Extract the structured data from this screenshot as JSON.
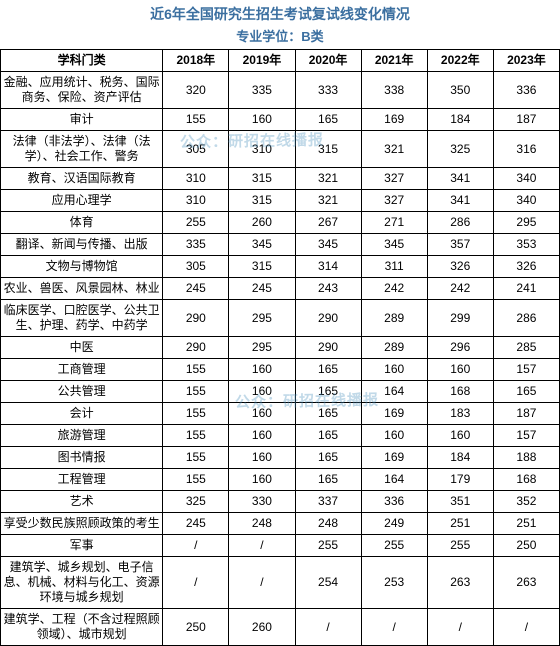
{
  "title_color": "#3b6fa0",
  "title": "近6年全国研究生招生考试复试线变化情况",
  "subtitle": "专业学位：B类",
  "columns": [
    "学科门类",
    "2018年",
    "2019年",
    "2020年",
    "2021年",
    "2022年",
    "2023年"
  ],
  "watermark1": "公众：研招在线播报",
  "watermark2": "公众：研招在线播报",
  "rows": [
    {
      "cat": "金融、应用统计、税务、国际商务、保险、资产评估",
      "v": [
        "320",
        "335",
        "333",
        "338",
        "350",
        "336"
      ]
    },
    {
      "cat": "审计",
      "v": [
        "155",
        "160",
        "165",
        "169",
        "184",
        "187"
      ]
    },
    {
      "cat": "法律（非法学）、法律（法学）、社会工作、警务",
      "v": [
        "305",
        "310",
        "315",
        "321",
        "325",
        "316"
      ]
    },
    {
      "cat": "教育、汉语国际教育",
      "v": [
        "310",
        "315",
        "321",
        "327",
        "341",
        "340"
      ]
    },
    {
      "cat": "应用心理学",
      "v": [
        "310",
        "315",
        "321",
        "327",
        "341",
        "340"
      ]
    },
    {
      "cat": "体育",
      "v": [
        "255",
        "260",
        "267",
        "271",
        "286",
        "295"
      ]
    },
    {
      "cat": "翻译、新闻与传播、出版",
      "v": [
        "335",
        "345",
        "345",
        "345",
        "357",
        "353"
      ]
    },
    {
      "cat": "文物与博物馆",
      "v": [
        "305",
        "315",
        "314",
        "311",
        "326",
        "326"
      ]
    },
    {
      "cat": "农业、兽医、风景园林、林业",
      "v": [
        "245",
        "245",
        "243",
        "242",
        "242",
        "241"
      ]
    },
    {
      "cat": "临床医学、口腔医学、公共卫生、护理、药学、中药学",
      "v": [
        "290",
        "295",
        "290",
        "289",
        "299",
        "286"
      ]
    },
    {
      "cat": "中医",
      "v": [
        "290",
        "295",
        "290",
        "289",
        "296",
        "285"
      ]
    },
    {
      "cat": "工商管理",
      "v": [
        "155",
        "160",
        "165",
        "160",
        "160",
        "157"
      ]
    },
    {
      "cat": "公共管理",
      "v": [
        "155",
        "160",
        "165",
        "164",
        "168",
        "165"
      ]
    },
    {
      "cat": "会计",
      "v": [
        "155",
        "160",
        "165",
        "169",
        "183",
        "187"
      ]
    },
    {
      "cat": "旅游管理",
      "v": [
        "155",
        "160",
        "165",
        "160",
        "160",
        "157"
      ]
    },
    {
      "cat": "图书情报",
      "v": [
        "155",
        "160",
        "165",
        "169",
        "184",
        "188"
      ]
    },
    {
      "cat": "工程管理",
      "v": [
        "155",
        "160",
        "165",
        "164",
        "179",
        "168"
      ]
    },
    {
      "cat": "艺术",
      "v": [
        "325",
        "330",
        "337",
        "336",
        "351",
        "352"
      ]
    },
    {
      "cat": "享受少数民族照顾政策的考生",
      "v": [
        "245",
        "248",
        "248",
        "249",
        "251",
        "251"
      ]
    },
    {
      "cat": "军事",
      "v": [
        "/",
        "/",
        "255",
        "255",
        "255",
        "250"
      ]
    },
    {
      "cat": "建筑学、城乡规划、电子信息、机械、材料与化工、资源环境与城乡规划",
      "v": [
        "/",
        "/",
        "254",
        "253",
        "263",
        "263"
      ]
    },
    {
      "cat": "建筑学、工程（不含过程照顾领域）、城市规划",
      "v": [
        "250",
        "260",
        "/",
        "/",
        "/",
        "/"
      ]
    }
  ]
}
